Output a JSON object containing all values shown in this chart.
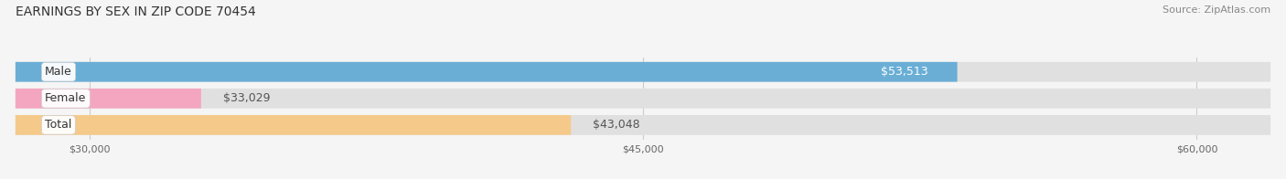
{
  "title": "EARNINGS BY SEX IN ZIP CODE 70454",
  "source": "Source: ZipAtlas.com",
  "categories": [
    "Male",
    "Female",
    "Total"
  ],
  "values": [
    53513,
    33029,
    43048
  ],
  "bar_colors": [
    "#6aaed6",
    "#f4a6c0",
    "#f5c98a"
  ],
  "label_colors": [
    "white",
    "#555555",
    "#555555"
  ],
  "value_labels": [
    "$53,513",
    "$33,029",
    "$43,048"
  ],
  "x_min": 28000,
  "x_max": 62000,
  "x_ticks": [
    30000,
    45000,
    60000
  ],
  "x_tick_labels": [
    "$30,000",
    "$45,000",
    "$60,000"
  ],
  "bar_height": 0.55,
  "background_color": "#f5f5f5",
  "bar_bg_color": "#e0e0e0",
  "title_fontsize": 10,
  "source_fontsize": 8,
  "label_fontsize": 9,
  "value_fontsize": 9
}
